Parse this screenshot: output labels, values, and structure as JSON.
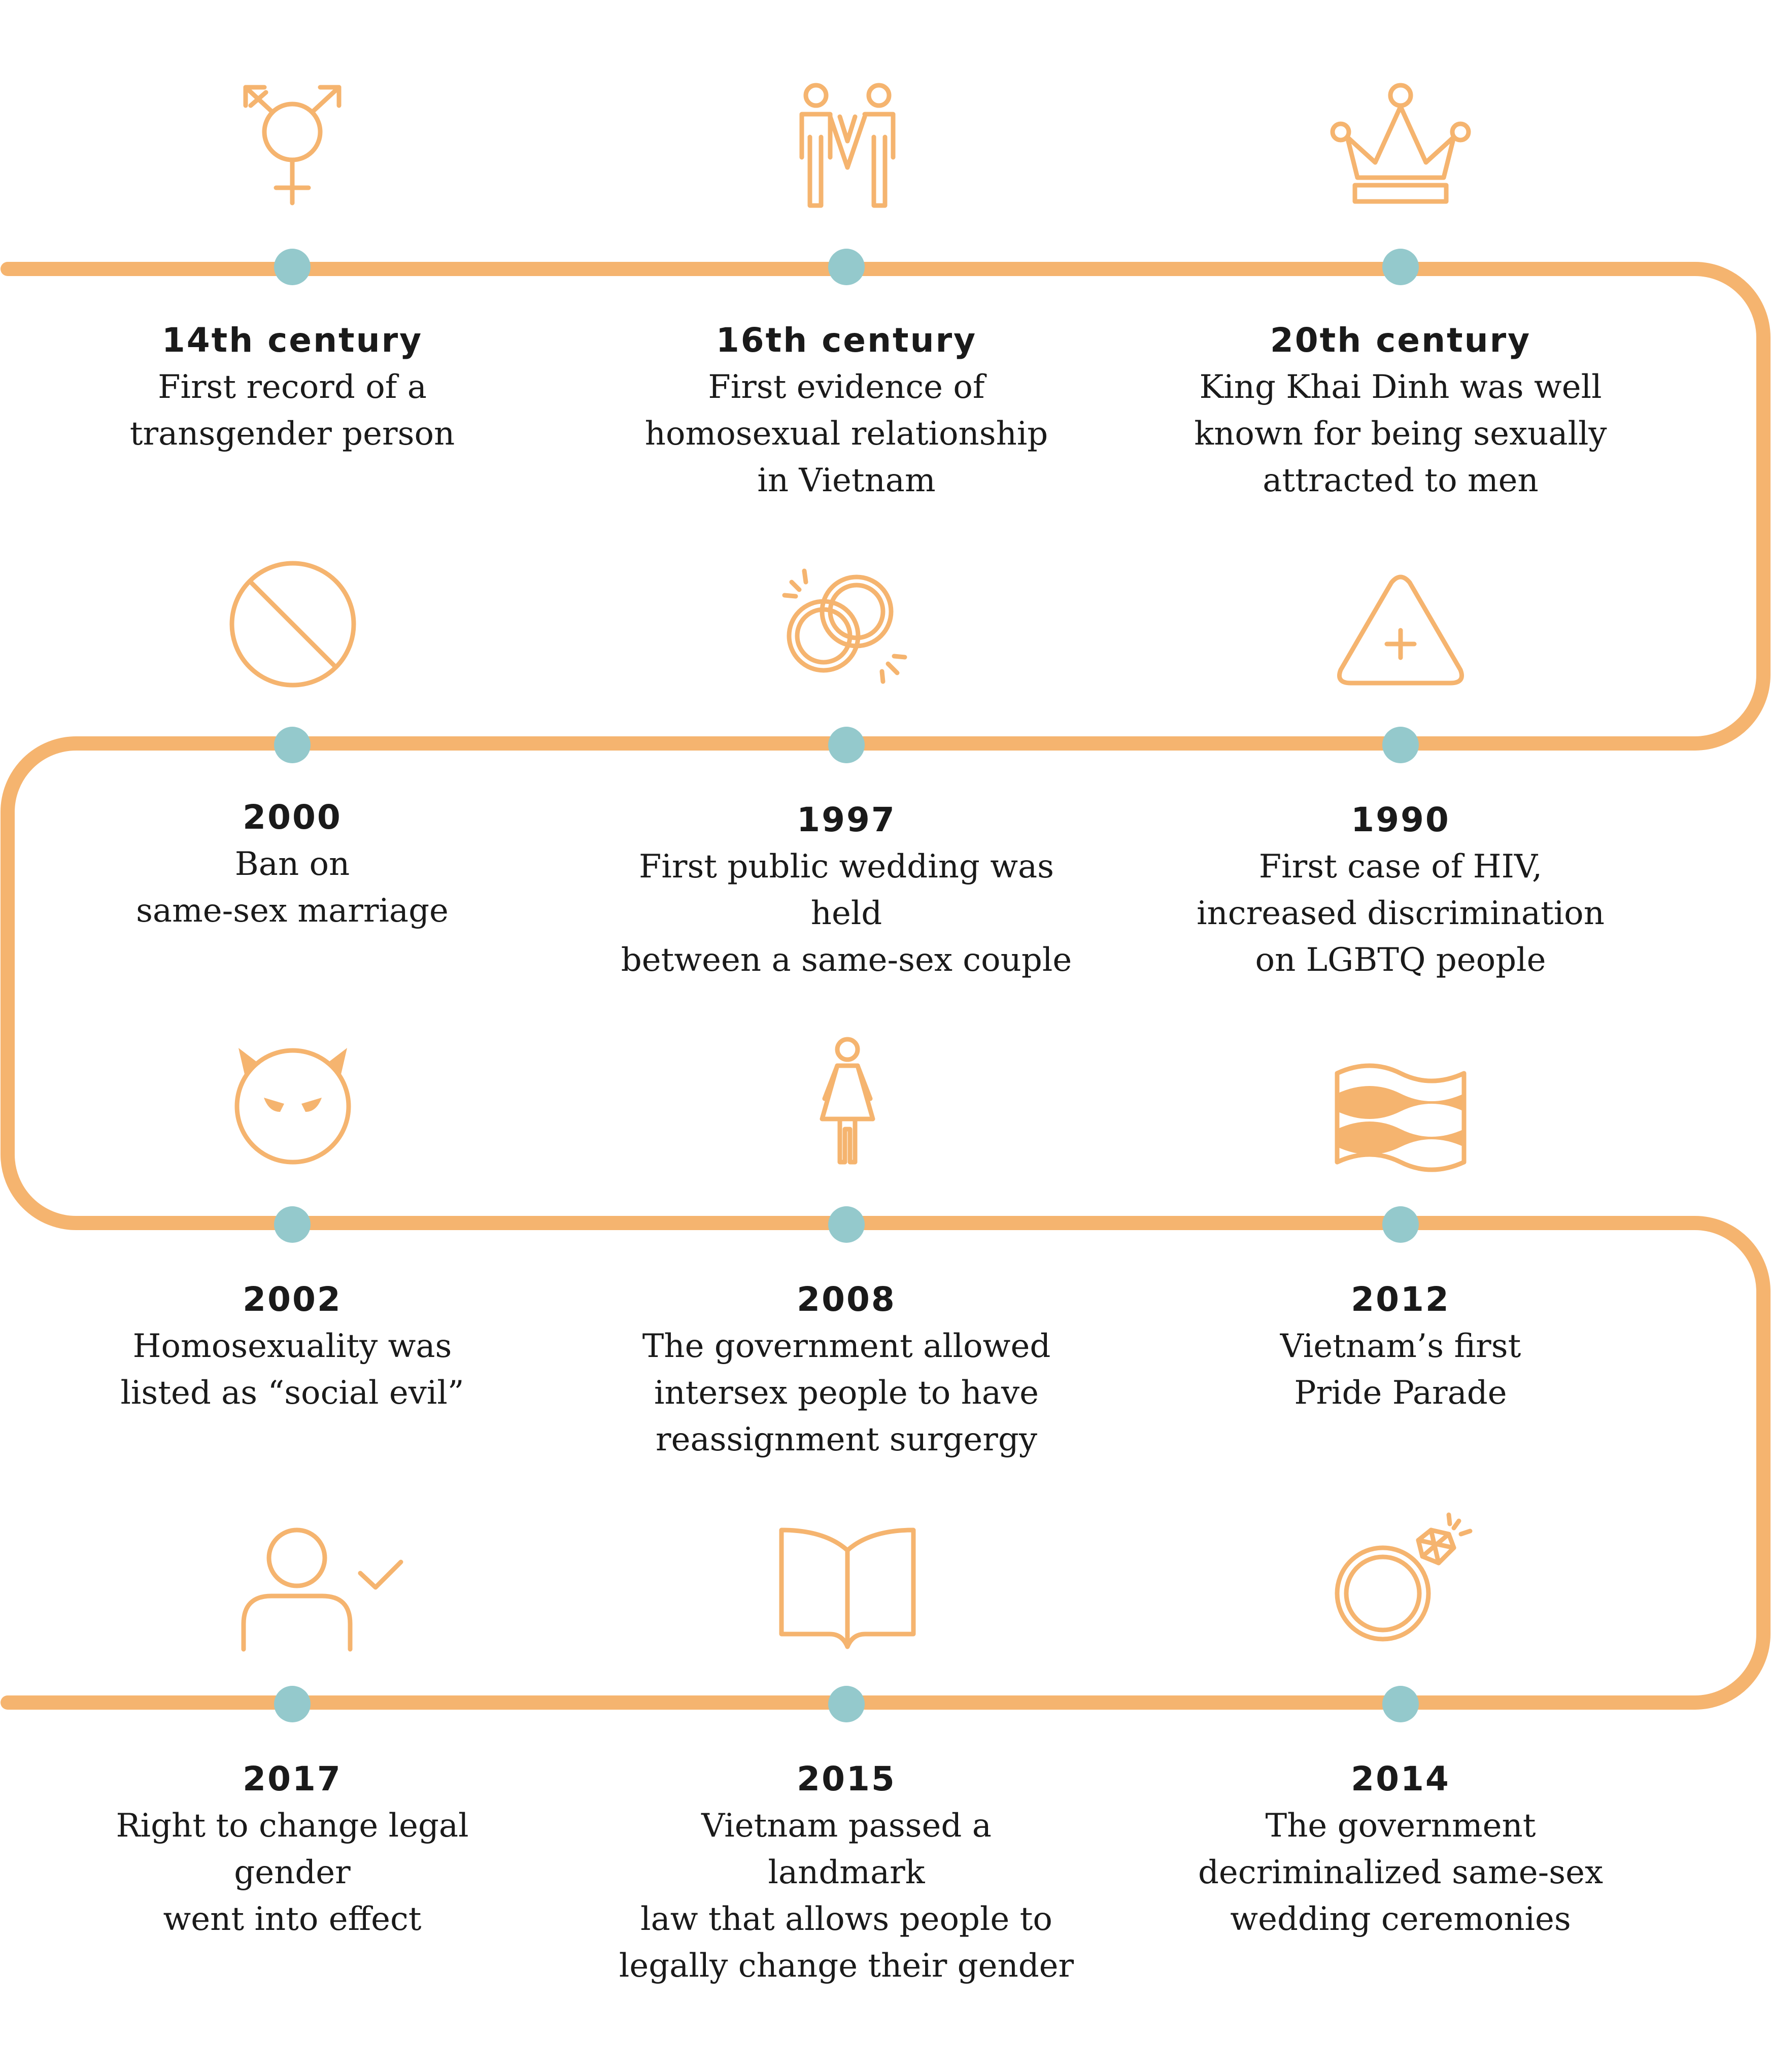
{
  "colors": {
    "path": "#f5b46f",
    "node": "#94c9cc",
    "text": "#1a1a1a"
  },
  "events": [
    {
      "year": "14th century",
      "description": "First record of a\ntransgender person",
      "icon": "transgender-symbol-icon"
    },
    {
      "year": "16th century",
      "description": "First evidence of\nhomosexual relationship\nin Vietnam",
      "icon": "same-sex-couple-icon"
    },
    {
      "year": "20th century",
      "description": "King Khai Dinh was well\nknown for being sexually\nattracted to men",
      "icon": "crown-icon"
    },
    {
      "year": "2000",
      "description": "Ban on\nsame-sex marriage",
      "icon": "prohibited-icon"
    },
    {
      "year": "1997",
      "description": "First public wedding was held\nbetween a same-sex couple",
      "icon": "wedding-rings-icon"
    },
    {
      "year": "1990",
      "description": "First case of HIV,\nincreased discrimination\non LGBTQ people",
      "icon": "medical-warning-icon"
    },
    {
      "year": "2002",
      "description": "Homosexuality was\nlisted as “social evil”",
      "icon": "devil-face-icon"
    },
    {
      "year": "2008",
      "description": "The government allowed\nintersex people to have\nreassignment surgergy",
      "icon": "person-icon"
    },
    {
      "year": "2012",
      "description": "Vietnam’s first\nPride Parade",
      "icon": "pride-flag-icon"
    },
    {
      "year": "2017",
      "description": "Right to change legal gender\nwent into effect",
      "icon": "user-check-icon"
    },
    {
      "year": "2015",
      "description": "Vietnam passed a landmark\nlaw that allows people to\nlegally change their gender",
      "icon": "open-book-icon"
    },
    {
      "year": "2014",
      "description": "The government\ndecriminalized same-sex\nwedding ceremonies",
      "icon": "diamond-ring-icon"
    }
  ]
}
